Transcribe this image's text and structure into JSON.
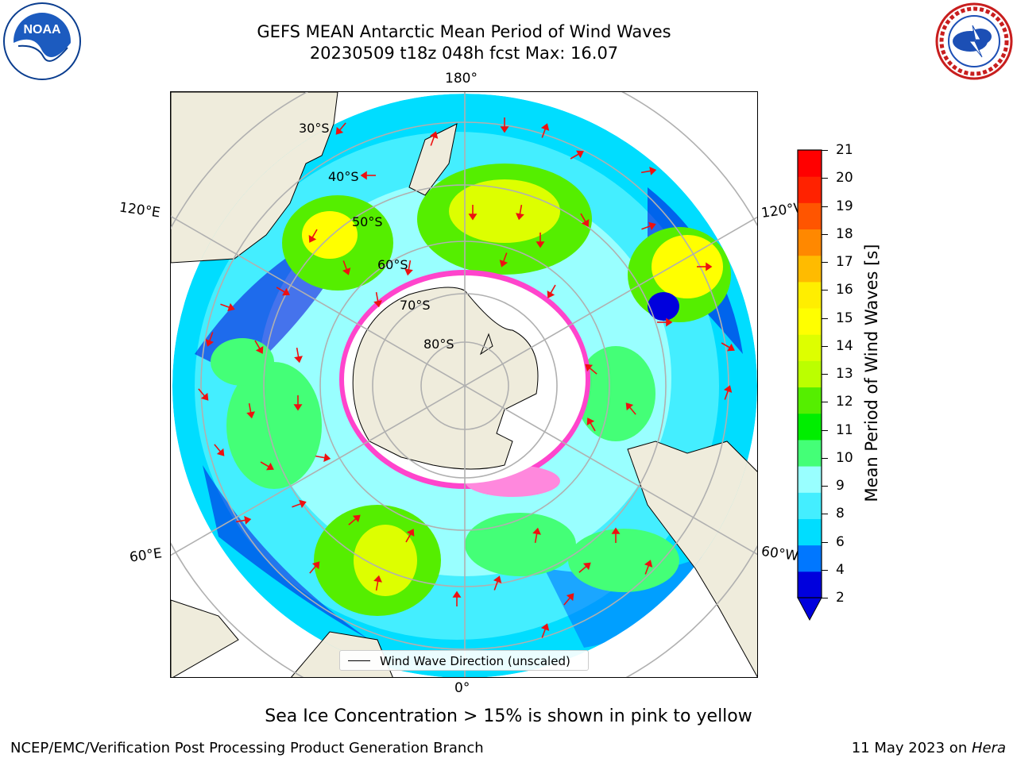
{
  "header": {
    "title_line1": "GEFS MEAN Antarctic Mean Period of Wind Waves",
    "title_line2": "20230509 t18z 048h fcst   Max: 16.07"
  },
  "logos": {
    "left": {
      "name": "NOAA",
      "text": "NOAA"
    },
    "right": {
      "name": "National Weather Service",
      "text": "NATIONAL WEATHER SERVICE"
    }
  },
  "map": {
    "projection": "south-polar-stereographic",
    "lon_labels": {
      "top": "180°",
      "bottom": "0°",
      "upper_left": "120°E",
      "upper_right": "120°W",
      "lower_left": "60°E",
      "lower_right": "60°W"
    },
    "lat_labels": [
      "30°S",
      "40°S",
      "50°S",
      "60°S",
      "70°S",
      "80°S"
    ],
    "legend": "Wind Wave Direction (unscaled)",
    "colors": {
      "land": "#efecdc",
      "ice": "#ff44cc",
      "arrows": "#ee1111",
      "grid": "#b0b0b0"
    }
  },
  "colorbar": {
    "label": "Mean Period of Wind Waves [s]",
    "ticks": [
      "2",
      "4",
      "6",
      "8",
      "9",
      "10",
      "11",
      "12",
      "13",
      "14",
      "15",
      "16",
      "17",
      "18",
      "19",
      "20",
      "21"
    ],
    "colors": [
      "#0000dd",
      "#0077ff",
      "#00ddff",
      "#44eeff",
      "#99ffff",
      "#44ff77",
      "#00ee00",
      "#55ee00",
      "#bbff00",
      "#ddff00",
      "#ffff00",
      "#ffee00",
      "#ffbb00",
      "#ff8800",
      "#ff5500",
      "#ff2200",
      "#ff0000"
    ],
    "extend_min": true
  },
  "footer": {
    "subtitle": "Sea Ice Concentration > 15% is shown in pink to yellow",
    "left": "NCEP/EMC/Verification Post Processing Product Generation Branch",
    "right_date": "11 May 2023 on ",
    "right_host": "Hera"
  }
}
